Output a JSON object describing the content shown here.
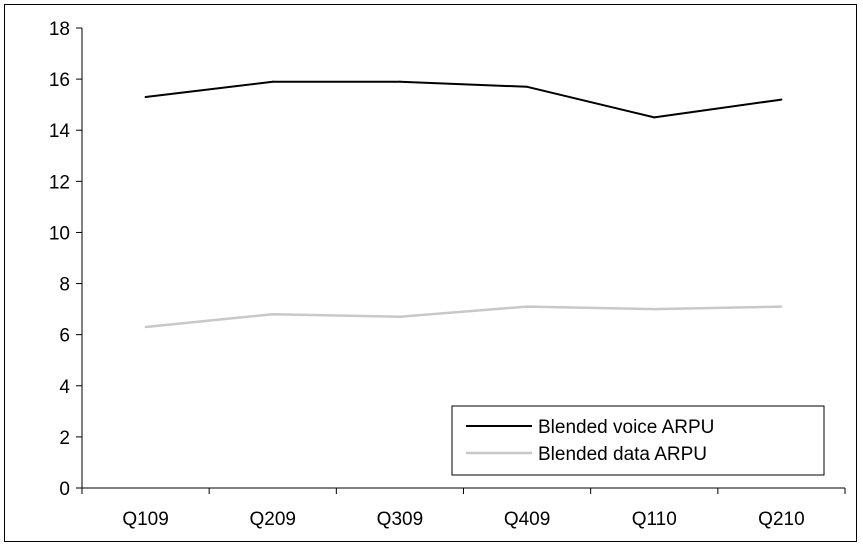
{
  "chart_data": {
    "type": "line",
    "title": "",
    "xlabel": "",
    "ylabel": "",
    "categories": [
      "Q109",
      "Q209",
      "Q309",
      "Q409",
      "Q110",
      "Q210"
    ],
    "ylim": [
      0,
      18
    ],
    "yticks": [
      0,
      2,
      4,
      6,
      8,
      10,
      12,
      14,
      16,
      18
    ],
    "grid": false,
    "legend_position": "bottom-right",
    "series": [
      {
        "name": "Blended voice ARPU",
        "color": "#000000",
        "values": [
          15.3,
          15.9,
          15.9,
          15.7,
          14.5,
          15.2
        ]
      },
      {
        "name": "Blended data ARPU",
        "color": "#c8c8c8",
        "values": [
          6.3,
          6.8,
          6.7,
          7.1,
          7.0,
          7.1
        ]
      }
    ]
  }
}
